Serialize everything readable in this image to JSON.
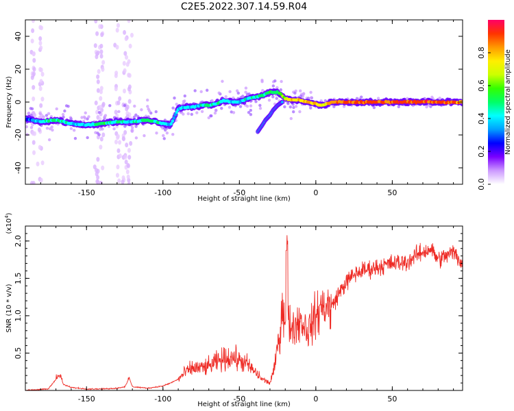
{
  "title": "C2E5.2022.307.14.59.R04",
  "chart_data": [
    {
      "type": "heatmap",
      "xlabel": "Height of straight line (km)",
      "ylabel": "Frequency (Hz)",
      "xlim": [
        -190,
        96
      ],
      "ylim": [
        -50,
        50
      ],
      "xticks": [
        -150,
        -100,
        -50,
        0,
        50
      ],
      "yticks": [
        -40,
        -20,
        0,
        20,
        40
      ],
      "colorbar": {
        "label": "Normalized spectral amplitude",
        "range": [
          0,
          1
        ],
        "ticks": [
          "0.0",
          "0.2",
          "0.4",
          "0.6",
          "0.8"
        ],
        "colors": [
          "#ffffff",
          "#cc99ff",
          "#7a00ff",
          "#0000ff",
          "#00a0ff",
          "#00ffff",
          "#00ff66",
          "#33ff00",
          "#ccff00",
          "#ffee00",
          "#ff9900",
          "#ff3300",
          "#ff0066"
        ]
      },
      "ridge": {
        "x": [
          -190,
          -180,
          -170,
          -160,
          -150,
          -140,
          -130,
          -120,
          -110,
          -100,
          -95,
          -90,
          -85,
          -80,
          -75,
          -70,
          -65,
          -60,
          -55,
          -50,
          -45,
          -40,
          -35,
          -30,
          -25,
          -22,
          -20,
          -15,
          -10,
          -5,
          0,
          2,
          5,
          8,
          10,
          20,
          40,
          60,
          80,
          96
        ],
        "y": [
          -10,
          -12,
          -11,
          -13,
          -14,
          -13,
          -12,
          -12,
          -11,
          -13,
          -14,
          -4,
          -3,
          -3,
          -2,
          -2,
          -1,
          1,
          0,
          0,
          2,
          3,
          4,
          6,
          6,
          4,
          2,
          1,
          1,
          0,
          -1,
          -2,
          -2,
          -1,
          0,
          0,
          0,
          0,
          0,
          0
        ],
        "amplitude": [
          0.3,
          0.4,
          0.5,
          0.4,
          0.4,
          0.5,
          0.45,
          0.4,
          0.5,
          0.45,
          0.35,
          0.35,
          0.4,
          0.45,
          0.4,
          0.45,
          0.45,
          0.45,
          0.4,
          0.4,
          0.45,
          0.45,
          0.5,
          0.5,
          0.5,
          0.6,
          0.7,
          0.8,
          0.8,
          0.8,
          0.8,
          0.75,
          0.75,
          0.8,
          0.85,
          0.9,
          0.9,
          0.9,
          0.9,
          0.85
        ]
      },
      "branch": {
        "x": [
          -38,
          -35,
          -33,
          -30,
          -28,
          -25,
          -22
        ],
        "y": [
          -18,
          -14,
          -11,
          -8,
          -5,
          -2,
          0
        ]
      }
    },
    {
      "type": "line",
      "xlabel": "Height of straight line (km)",
      "ylabel": "SNR (10 * v/v)",
      "y_multiplier": "(x10",
      "y_multiplier_exp": "4",
      "y_multiplier_close": ")",
      "xlim": [
        -190,
        96
      ],
      "ylim": [
        0,
        2.2
      ],
      "xticks": [
        -150,
        -100,
        -50,
        0,
        50
      ],
      "yticks": [
        "0.5",
        "1.0",
        "1.5",
        "2.0"
      ],
      "line_color": "#ee2a24",
      "series": [
        {
          "x": [
            -190,
            -175,
            -168,
            -165,
            -160,
            -150,
            -140,
            -130,
            -125,
            -122,
            -120,
            -110,
            -100,
            -95,
            -90,
            -85,
            -80,
            -75,
            -70,
            -65,
            -60,
            -55,
            -50,
            -45,
            -40,
            -35,
            -30,
            -27,
            -25,
            -23,
            -22,
            -20,
            -18,
            -15,
            -10,
            -5,
            0,
            5,
            10,
            15,
            20,
            25,
            30,
            40,
            50,
            60,
            65,
            70,
            75,
            80,
            85,
            90,
            96
          ],
          "y": [
            0.0,
            0.02,
            0.2,
            0.08,
            0.04,
            0.02,
            0.02,
            0.03,
            0.05,
            0.16,
            0.05,
            0.03,
            0.06,
            0.1,
            0.15,
            0.25,
            0.3,
            0.3,
            0.32,
            0.38,
            0.42,
            0.45,
            0.4,
            0.35,
            0.25,
            0.15,
            0.1,
            0.3,
            0.6,
            0.8,
            1.2,
            0.95,
            0.9,
            0.85,
            0.95,
            0.8,
            1.0,
            1.15,
            1.1,
            1.3,
            1.45,
            1.55,
            1.6,
            1.65,
            1.7,
            1.72,
            1.8,
            1.85,
            1.9,
            1.75,
            1.8,
            1.85,
            1.7
          ]
        }
      ]
    }
  ]
}
